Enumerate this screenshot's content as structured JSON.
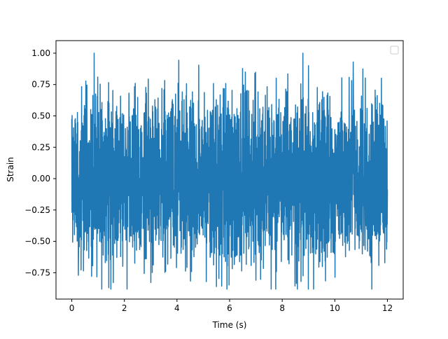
{
  "chart_data": {
    "type": "line",
    "title": "",
    "xlabel": "Time (s)",
    "ylabel": "Strain",
    "xlim": [
      -0.6,
      12.6
    ],
    "ylim": [
      -0.96,
      1.1
    ],
    "xticks": [
      0,
      2,
      4,
      6,
      8,
      10,
      12
    ],
    "xtick_labels": [
      "0",
      "2",
      "4",
      "6",
      "8",
      "10",
      "12"
    ],
    "yticks": [
      -0.75,
      -0.5,
      -0.25,
      0.0,
      0.25,
      0.5,
      0.75,
      1.0
    ],
    "ytick_labels": [
      "−0.75",
      "−0.50",
      "−0.25",
      "0.00",
      "0.25",
      "0.50",
      "0.75",
      "1.00"
    ],
    "grid": false,
    "legend": {
      "placement": "top-right",
      "entries": []
    },
    "series": [
      {
        "color": "#1f77b4",
        "x_range": [
          0,
          12
        ],
        "approx_sample_rate_hz": 4096,
        "amplitude_envelope": {
          "typical": 0.45,
          "max": 1.0,
          "min": -0.88
        },
        "notable_points": [
          {
            "x": 0.85,
            "y": 1.0
          },
          {
            "x": 10.7,
            "y": 0.93
          },
          {
            "x": 9.0,
            "y": 0.9
          },
          {
            "x": 6.6,
            "y": 0.85
          },
          {
            "x": 5.5,
            "y": -0.86
          },
          {
            "x": 5.9,
            "y": -0.88
          },
          {
            "x": 7.0,
            "y": -0.81
          },
          {
            "x": 0.25,
            "y": -0.77
          }
        ]
      }
    ]
  }
}
